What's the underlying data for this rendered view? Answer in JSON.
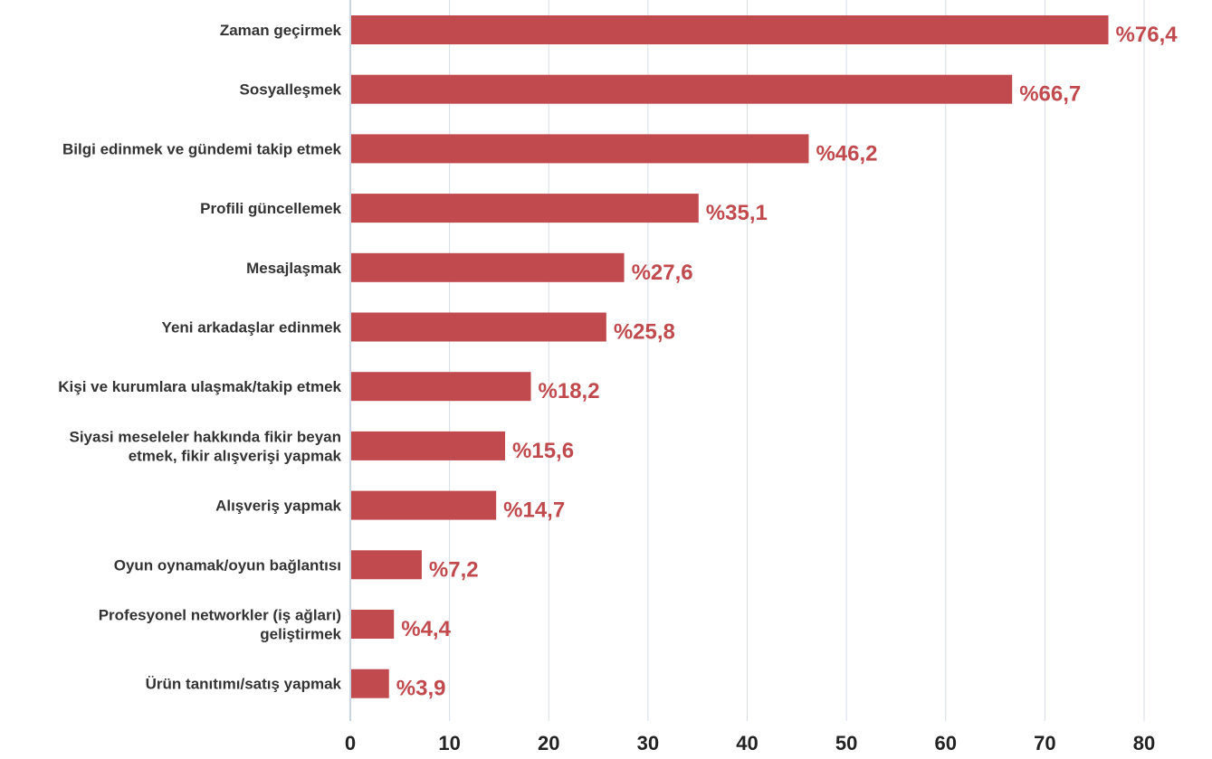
{
  "chart_data": {
    "type": "bar",
    "orientation": "horizontal",
    "categories": [
      [
        "Zaman geçirmek"
      ],
      [
        "Sosyalleşmek"
      ],
      [
        "Bilgi edinmek ve gündemi takip etmek"
      ],
      [
        "Profili güncellemek"
      ],
      [
        "Mesajlaşmak"
      ],
      [
        "Yeni arkadaşlar edinmek"
      ],
      [
        "Kişi ve kurumlara ulaşmak/takip etmek"
      ],
      [
        "Siyasi meseleler hakkında fikir beyan",
        "etmek, fikir alışverişi yapmak"
      ],
      [
        "Alışveriş yapmak"
      ],
      [
        "Oyun oynamak/oyun bağlantısı"
      ],
      [
        "Profesyonel networkler  (iş ağları)",
        "geliştirmek"
      ],
      [
        "Ürün tanıtımı/satış yapmak"
      ]
    ],
    "values": [
      76.4,
      66.7,
      46.2,
      35.1,
      27.6,
      25.8,
      18.2,
      15.6,
      14.7,
      7.2,
      4.4,
      3.9
    ],
    "value_labels": [
      "%76,4",
      "%66,7",
      "%46,2",
      "%35,1",
      "%27,6",
      "%25,8",
      "%18,2",
      "%15,6",
      "%14,7",
      "%7,2",
      "%4,4",
      "%3,9"
    ],
    "xticks": [
      "0",
      "10",
      "20",
      "30",
      "40",
      "50",
      "60",
      "70",
      "80"
    ],
    "xlim": [
      0,
      80
    ],
    "title": "",
    "xlabel": "",
    "ylabel": "",
    "grid": "vertical",
    "legend": "none",
    "colors": {
      "bar": "#c04a4e",
      "value_label": "#c04a4e",
      "gridline": "#d5dde6",
      "axis": "#bcc8d6"
    }
  }
}
